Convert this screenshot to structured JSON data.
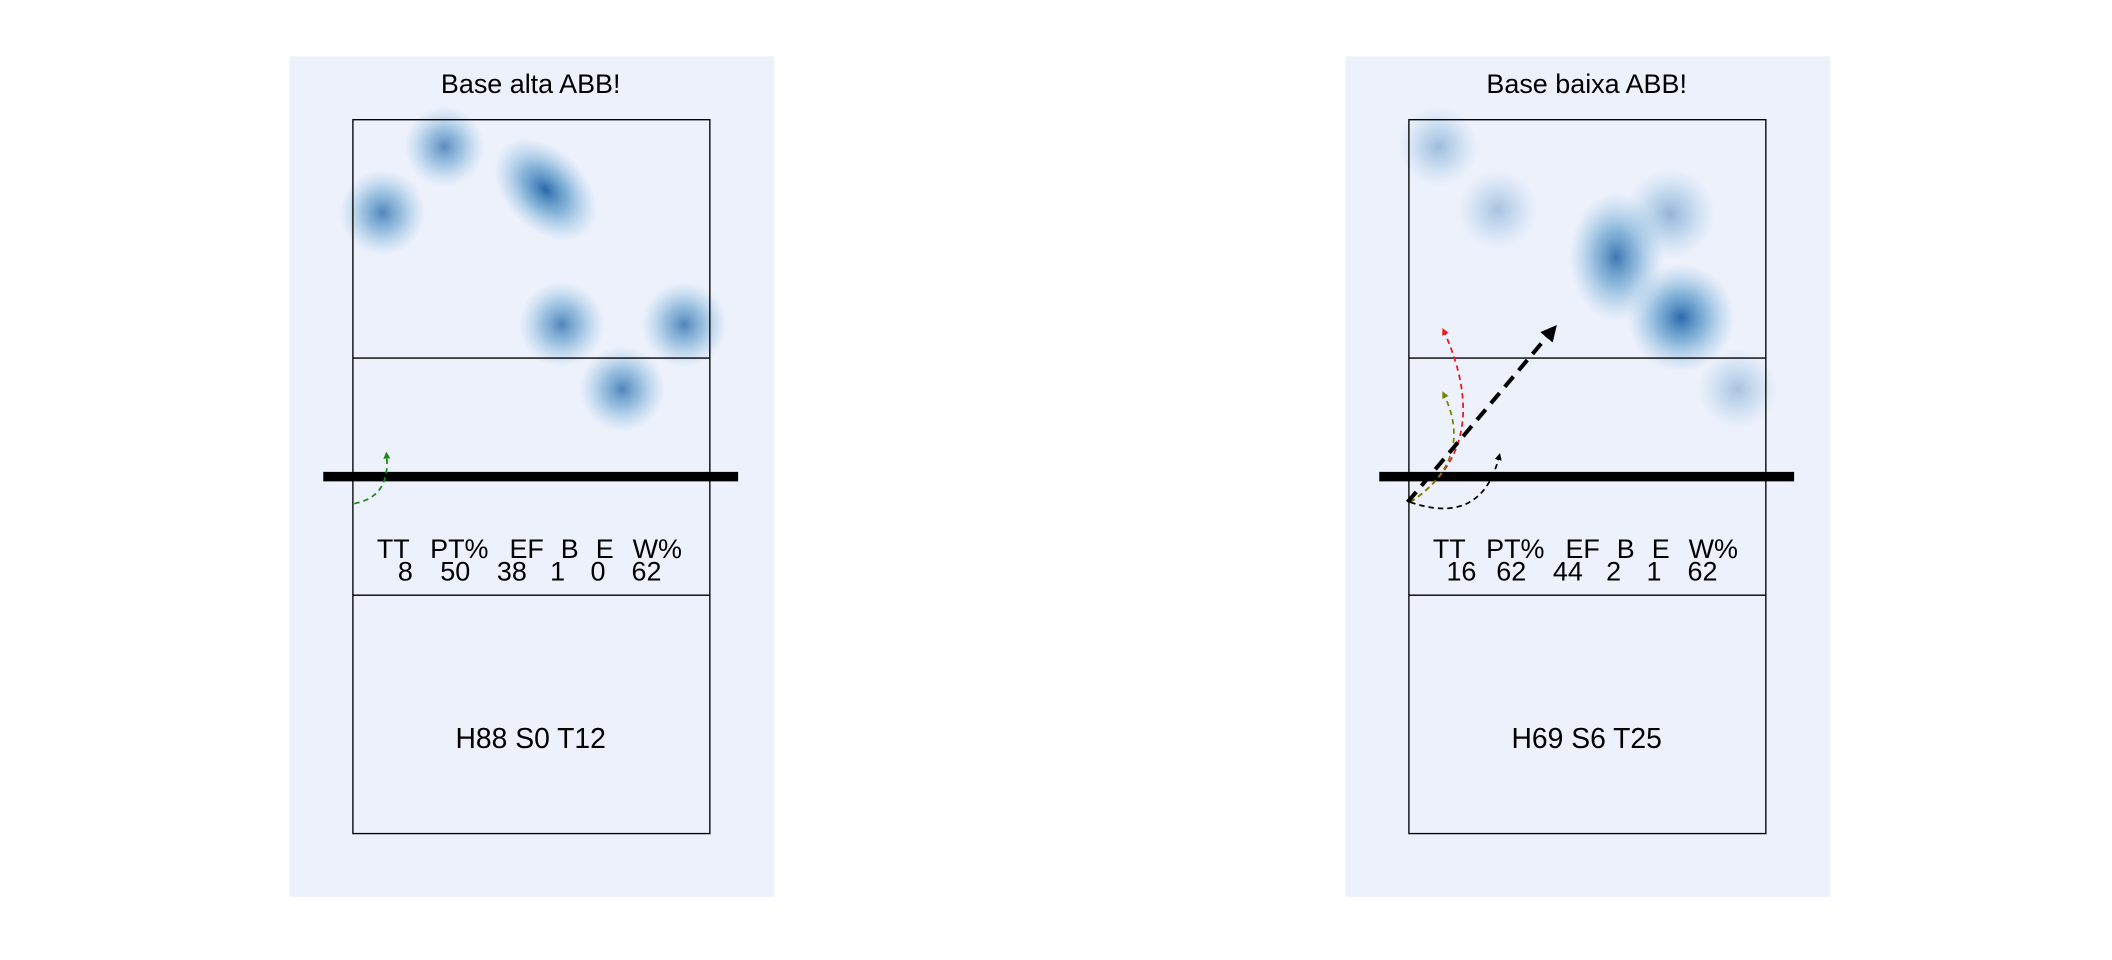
{
  "panels": [
    {
      "title": "Base alta ABB!",
      "stats": {
        "headers": [
          "TT",
          "PT%",
          "EF",
          "B",
          "E",
          "W%"
        ],
        "values": [
          8,
          50,
          38,
          1,
          0,
          62
        ]
      },
      "footer": "H88 S0 T12"
    },
    {
      "title": "Base baixa ABB!",
      "stats": {
        "headers": [
          "TT",
          "PT%",
          "EF",
          "B",
          "E",
          "W%"
        ],
        "values": [
          16,
          62,
          44,
          2,
          1,
          62
        ]
      },
      "footer": "H69 S6 T25"
    }
  ]
}
